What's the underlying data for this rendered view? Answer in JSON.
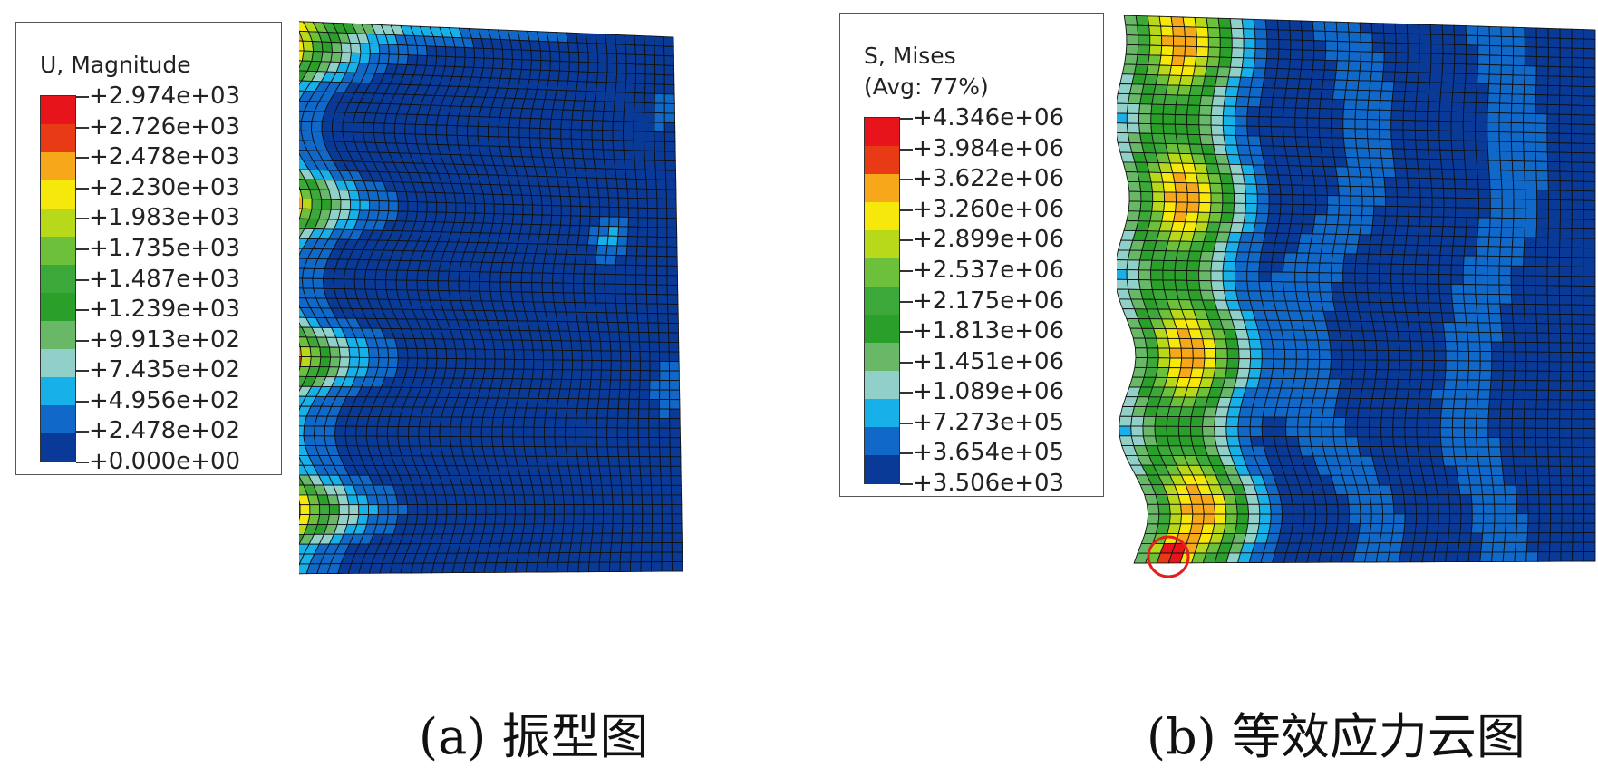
{
  "panel_a": {
    "caption": "(a)  振型图",
    "legend": {
      "title_lines": [
        "U, Magnitude"
      ],
      "values": [
        "+2.974e+03",
        "+2.726e+03",
        "+2.478e+03",
        "+2.230e+03",
        "+1.983e+03",
        "+1.735e+03",
        "+1.487e+03",
        "+1.239e+03",
        "+9.913e+02",
        "+7.435e+02",
        "+4.956e+02",
        "+2.478e+02",
        "+0.000e+00"
      ],
      "colors": [
        "#e8141c",
        "#e83a14",
        "#f7a81a",
        "#f7e80c",
        "#b8d81a",
        "#6cc03a",
        "#3ca83a",
        "#2aa02a",
        "#68b868",
        "#90d0c8",
        "#18b0e8",
        "#1068c8",
        "#0a3a98"
      ]
    }
  },
  "panel_b": {
    "caption": "(b)  等效应力云图",
    "legend": {
      "title_lines": [
        "S, Mises",
        "(Avg: 77%)"
      ],
      "values": [
        "+4.346e+06",
        "+3.984e+06",
        "+3.622e+06",
        "+3.260e+06",
        "+2.899e+06",
        "+2.537e+06",
        "+2.175e+06",
        "+1.813e+06",
        "+1.451e+06",
        "+1.089e+06",
        "+7.273e+05",
        "+3.654e+05",
        "+3.506e+03"
      ],
      "colors": [
        "#e8141c",
        "#e83a14",
        "#f7a81a",
        "#f7e80c",
        "#b8d81a",
        "#6cc03a",
        "#3ca83a",
        "#2aa02a",
        "#68b868",
        "#90d0c8",
        "#18b0e8",
        "#1068c8",
        "#0a3a98"
      ]
    },
    "highlight_circle_color": "#e02020"
  }
}
